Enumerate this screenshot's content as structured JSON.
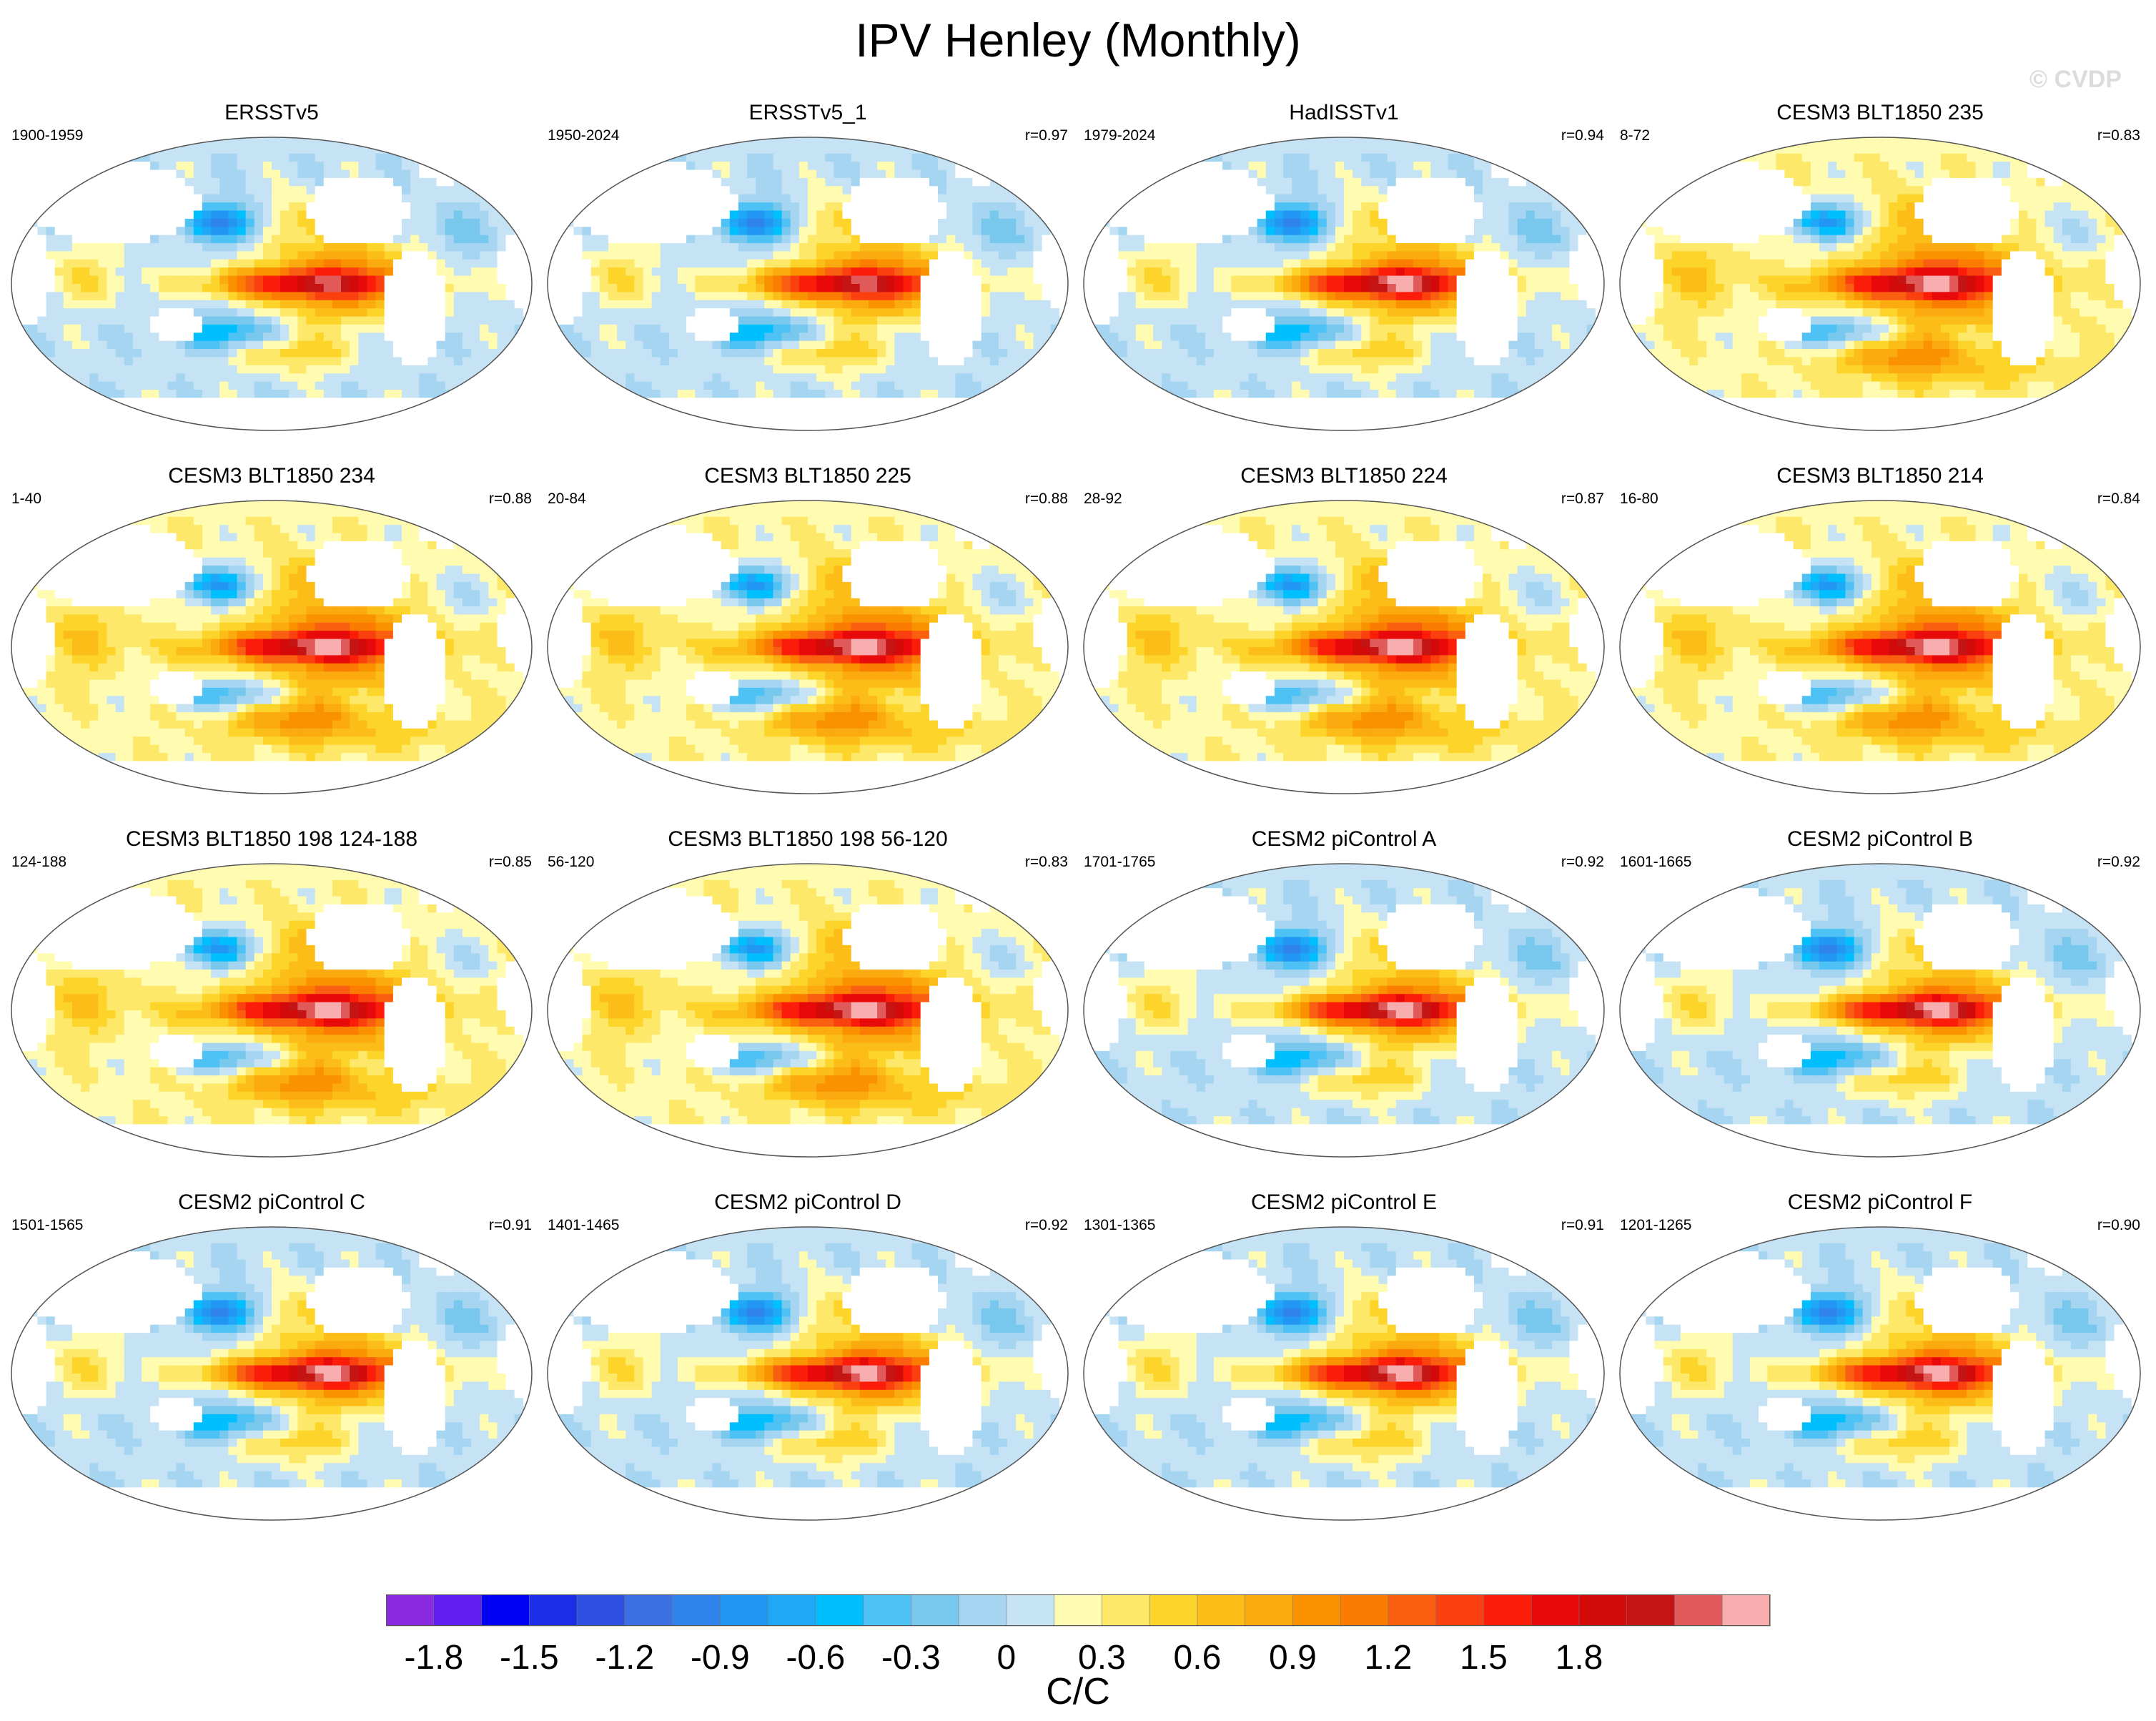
{
  "title": "IPV Henley (Monthly)",
  "watermark": "© CVDP",
  "chart_data": {
    "type": "heatmap",
    "title": "IPV Henley (Monthly)",
    "description_units": "C/C",
    "colorbar": {
      "label": "C/C",
      "ticks": [
        "-1.8",
        "-1.5",
        "-1.2",
        "-0.9",
        "-0.6",
        "-0.3",
        "0",
        "0.3",
        "0.6",
        "0.9",
        "1.2",
        "1.5",
        "1.8"
      ],
      "tick_values": [
        -1.8,
        -1.5,
        -1.2,
        -0.9,
        -0.6,
        -0.3,
        0,
        0.3,
        0.6,
        0.9,
        1.2,
        1.5,
        1.8
      ],
      "levels_min": -2.0,
      "levels_step": 0.15,
      "colors": [
        "#8a2be2",
        "#5f1df0",
        "#0000f5",
        "#1a2ee8",
        "#2e50e0",
        "#3b6fe2",
        "#2f83ea",
        "#2196f3",
        "#1ea8f5",
        "#00bfff",
        "#4ec2f5",
        "#78c8ee",
        "#a6d5f2",
        "#c6e3f5",
        "#fffbb0",
        "#fde86a",
        "#fdd42a",
        "#fcbd18",
        "#fbaa10",
        "#fa9200",
        "#fb7c00",
        "#fa5e10",
        "#fb4010",
        "#fb1d0a",
        "#e80a0a",
        "#d20a0a",
        "#c41414",
        "#e05a5a",
        "#f8aeae"
      ]
    },
    "panels": [
      {
        "title": "ERSSTv5",
        "years": "1900-1959",
        "r": "",
        "pattern": 0
      },
      {
        "title": "ERSSTv5_1",
        "years": "1950-2024",
        "r": "r=0.97",
        "pattern": 0
      },
      {
        "title": "HadISSTv1",
        "years": "1979-2024",
        "r": "r=0.94",
        "pattern": 1
      },
      {
        "title": "CESM3 BLT1850 235",
        "years": "8-72",
        "r": "r=0.83",
        "pattern": 2
      },
      {
        "title": "CESM3 BLT1850 234",
        "years": "1-40",
        "r": "r=0.88",
        "pattern": 2
      },
      {
        "title": "CESM3 BLT1850 225",
        "years": "20-84",
        "r": "r=0.88",
        "pattern": 2
      },
      {
        "title": "CESM3 BLT1850 224",
        "years": "28-92",
        "r": "r=0.87",
        "pattern": 2
      },
      {
        "title": "CESM3 BLT1850 214",
        "years": "16-80",
        "r": "r=0.84",
        "pattern": 2
      },
      {
        "title": "CESM3 BLT1850 198 124-188",
        "years": "124-188",
        "r": "r=0.85",
        "pattern": 2
      },
      {
        "title": "CESM3 BLT1850 198 56-120",
        "years": "56-120",
        "r": "r=0.83",
        "pattern": 2
      },
      {
        "title": "CESM2 piControl A",
        "years": "1701-1765",
        "r": "r=0.92",
        "pattern": 1
      },
      {
        "title": "CESM2 piControl B",
        "years": "1601-1665",
        "r": "r=0.92",
        "pattern": 1
      },
      {
        "title": "CESM2 piControl C",
        "years": "1501-1565",
        "r": "r=0.91",
        "pattern": 1
      },
      {
        "title": "CESM2 piControl D",
        "years": "1401-1465",
        "r": "r=0.92",
        "pattern": 1
      },
      {
        "title": "CESM2 piControl E",
        "years": "1301-1365",
        "r": "r=0.91",
        "pattern": 1
      },
      {
        "title": "CESM2 piControl F",
        "years": "1201-1265",
        "r": "r=0.90",
        "pattern": 1
      }
    ]
  }
}
